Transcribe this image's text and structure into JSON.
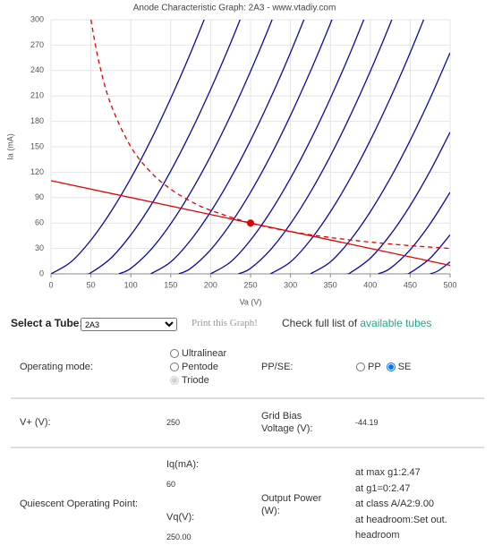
{
  "chart_data": {
    "type": "line",
    "title": "Anode Characteristic Graph: 2A3 - www.vtadiy.com",
    "x_label": "Va (V)",
    "y_label": "Ia (mA)",
    "xlim": [
      0,
      500
    ],
    "xticks": [
      0,
      50,
      100,
      150,
      200,
      250,
      300,
      350,
      400,
      450,
      500
    ],
    "ylim": [
      0,
      300
    ],
    "yticks": [
      0,
      30,
      60,
      90,
      120,
      150,
      180,
      210,
      240,
      270,
      300
    ],
    "grid": true,
    "series": [
      {
        "color": "#0a0aa8",
        "x": [
          0,
          25,
          50,
          75,
          100,
          125,
          150,
          175,
          200
        ],
        "values": [
          0,
          14.1,
          39.9,
          73.3,
          112.8,
          157.6,
          207.2,
          261.1,
          319.1
        ]
      },
      {
        "color": "#0a0aa8",
        "x": [
          45,
          50,
          75,
          100,
          125,
          150,
          175,
          200,
          225,
          250
        ],
        "values": [
          0,
          1.26,
          18.5,
          46.0,
          80.7,
          121.4,
          167.2,
          217.7,
          272.4,
          331
        ]
      },
      {
        "color": "#0a0aa8",
        "x": [
          85,
          100,
          125,
          150,
          175,
          200,
          225,
          250,
          275,
          300
        ],
        "values": [
          0,
          6.55,
          28.5,
          59.1,
          96.3,
          139.1,
          186.9,
          239.1,
          295.4,
          355.6
        ]
      },
      {
        "color": "#0a0aa8",
        "x": [
          125,
          150,
          175,
          200,
          225,
          250,
          275,
          300,
          325
        ],
        "values": [
          0,
          14.1,
          39.9,
          73.3,
          112.8,
          157.6,
          207.2,
          261.1,
          319.1
        ]
      },
      {
        "color": "#0a0aa8",
        "x": [
          160,
          175,
          200,
          225,
          250,
          275,
          300,
          325,
          350,
          375
        ],
        "values": [
          0,
          6.55,
          28.5,
          59.1,
          96.3,
          139.1,
          186.9,
          239.1,
          295.4,
          355.6
        ]
      },
      {
        "color": "#0a0aa8",
        "x": [
          200,
          225,
          250,
          275,
          300,
          325,
          350,
          375,
          400
        ],
        "values": [
          0,
          14.1,
          39.9,
          73.3,
          112.8,
          157.6,
          207.2,
          261.1,
          319.1
        ]
      },
      {
        "color": "#0a0aa8",
        "x": [
          235,
          250,
          275,
          300,
          325,
          350,
          375,
          400,
          425,
          450
        ],
        "values": [
          0,
          6.55,
          28.5,
          59.1,
          96.3,
          139.1,
          186.9,
          239.1,
          295.4,
          355.6
        ]
      },
      {
        "color": "#0a0aa8",
        "x": [
          275,
          300,
          325,
          350,
          375,
          400,
          425,
          450,
          475
        ],
        "values": [
          0,
          14.1,
          39.9,
          73.3,
          112.8,
          157.6,
          207.2,
          261.1,
          319.1
        ]
      },
      {
        "color": "#0a0aa8",
        "x": [
          325,
          350,
          375,
          400,
          425,
          450,
          475,
          500
        ],
        "values": [
          0,
          14.1,
          39.9,
          73.3,
          112.8,
          157.6,
          207.2,
          261.1
        ]
      },
      {
        "color": "#0a0aa8",
        "x": [
          370,
          375,
          400,
          425,
          450,
          475,
          500
        ],
        "values": [
          0,
          1.26,
          18.5,
          46.0,
          80.7,
          121.4,
          167.2
        ]
      },
      {
        "color": "#0a0aa8",
        "x": [
          410,
          425,
          450,
          475,
          500
        ],
        "values": [
          0,
          6.55,
          28.5,
          59.1,
          96.3
        ]
      },
      {
        "color": "#0a0aa8",
        "x": [
          445,
          450,
          475,
          500
        ],
        "values": [
          0,
          1.26,
          18.5,
          46.0
        ]
      },
      {
        "color": "#0a0aa8",
        "x": [
          475,
          485,
          500
        ],
        "values": [
          0,
          3.57,
          14.1
        ]
      },
      {
        "color": "#e00000",
        "x": [
          0,
          500
        ],
        "values": [
          110,
          10
        ]
      },
      {
        "color": "#e00000",
        "dashed": true,
        "x": [
          50,
          60,
          75,
          100,
          125,
          150,
          175,
          200,
          250,
          300,
          350,
          400,
          450,
          500
        ],
        "values": [
          300,
          250,
          200,
          150,
          120,
          100,
          85.7,
          75,
          60,
          50,
          42.9,
          37.5,
          33.3,
          30
        ]
      }
    ],
    "points": [
      {
        "x": 250,
        "y": 60,
        "color": "#e00000"
      }
    ]
  },
  "form": {
    "select_label": "Select a Tube:",
    "tube": "2A3",
    "print": "Print this Graph!",
    "check": "Check full list of ",
    "link": "available tubes",
    "mode_label": "Operating mode:",
    "modes": [
      "Ultralinear",
      "Pentode",
      "Triode"
    ],
    "ppse_label": "PP/SE:",
    "ppse": [
      "PP",
      "SE"
    ],
    "vplus_label": "V+ (V):",
    "vplus": "250",
    "bias_label": "Grid Bias Voltage (V):",
    "bias": "-44.19",
    "qop_label": "Quiescent Operating Point:",
    "iq_label": "Iq(mA):",
    "iq": "60",
    "vq_label": "Vq(V):",
    "vq": "250.00",
    "power_label": "Output Power (W):",
    "power": [
      "at max g1:2.47",
      "at g1=0:2.47",
      "at class A/A2:9.00",
      "at headroom:Set out. headroom"
    ]
  }
}
